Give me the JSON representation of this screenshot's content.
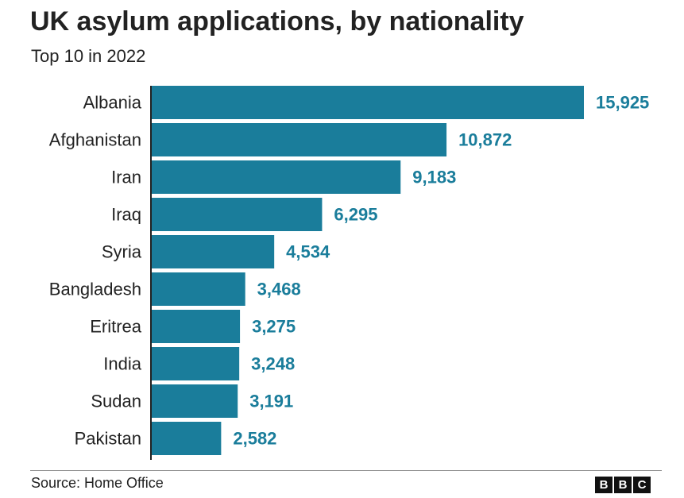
{
  "title": "UK asylum applications, by nationality",
  "subtitle": "Top 10 in 2022",
  "source": "Source: Home Office",
  "logo": [
    "B",
    "B",
    "C"
  ],
  "colors": {
    "bar": "#1a7d9b",
    "value_label": "#1a7d9b",
    "text": "#222222",
    "axis": "#222222"
  },
  "chart_data": {
    "type": "bar",
    "orientation": "horizontal",
    "categories": [
      "Albania",
      "Afghanistan",
      "Iran",
      "Iraq",
      "Syria",
      "Bangladesh",
      "Eritrea",
      "India",
      "Sudan",
      "Pakistan"
    ],
    "values": [
      15925,
      10872,
      9183,
      6295,
      4534,
      3468,
      3275,
      3248,
      3191,
      2582
    ],
    "value_labels": [
      "15,925",
      "10,872",
      "9,183",
      "6,295",
      "4,534",
      "3,468",
      "3,275",
      "3,248",
      "3,191",
      "2,582"
    ],
    "title": "UK asylum applications, by nationality",
    "subtitle": "Top 10 in 2022",
    "xlabel": "",
    "ylabel": "",
    "xlim": [
      0,
      15925
    ],
    "grid": false,
    "legend": "none"
  }
}
